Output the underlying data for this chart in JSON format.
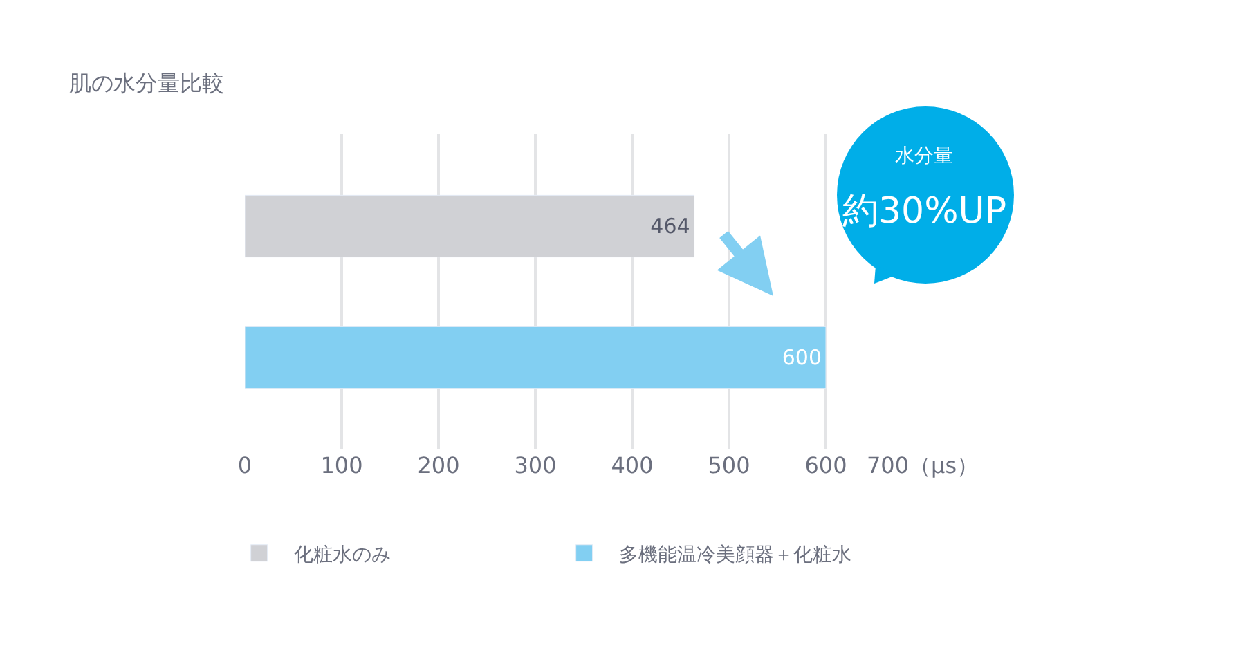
{
  "chart_data": {
    "type": "bar",
    "orientation": "horizontal",
    "title": "肌の水分量比較",
    "categories": [
      null,
      null
    ],
    "series": [
      {
        "name": "化粧水のみ",
        "color": "#d0d1d5",
        "values": [
          464,
          null
        ]
      },
      {
        "name": "多機能温冷美顔器＋化粧水",
        "color": "#82cff2",
        "values": [
          null,
          600
        ]
      }
    ],
    "xlim": [
      0,
      700
    ],
    "xticks": [
      0,
      100,
      200,
      300,
      400,
      500,
      600,
      {
        "value": 700,
        "label": "700（μs）"
      }
    ],
    "grid": "x",
    "legend": "bottom",
    "data_labels": true,
    "annotations": [
      "水分量",
      "約30%UP"
    ]
  }
}
